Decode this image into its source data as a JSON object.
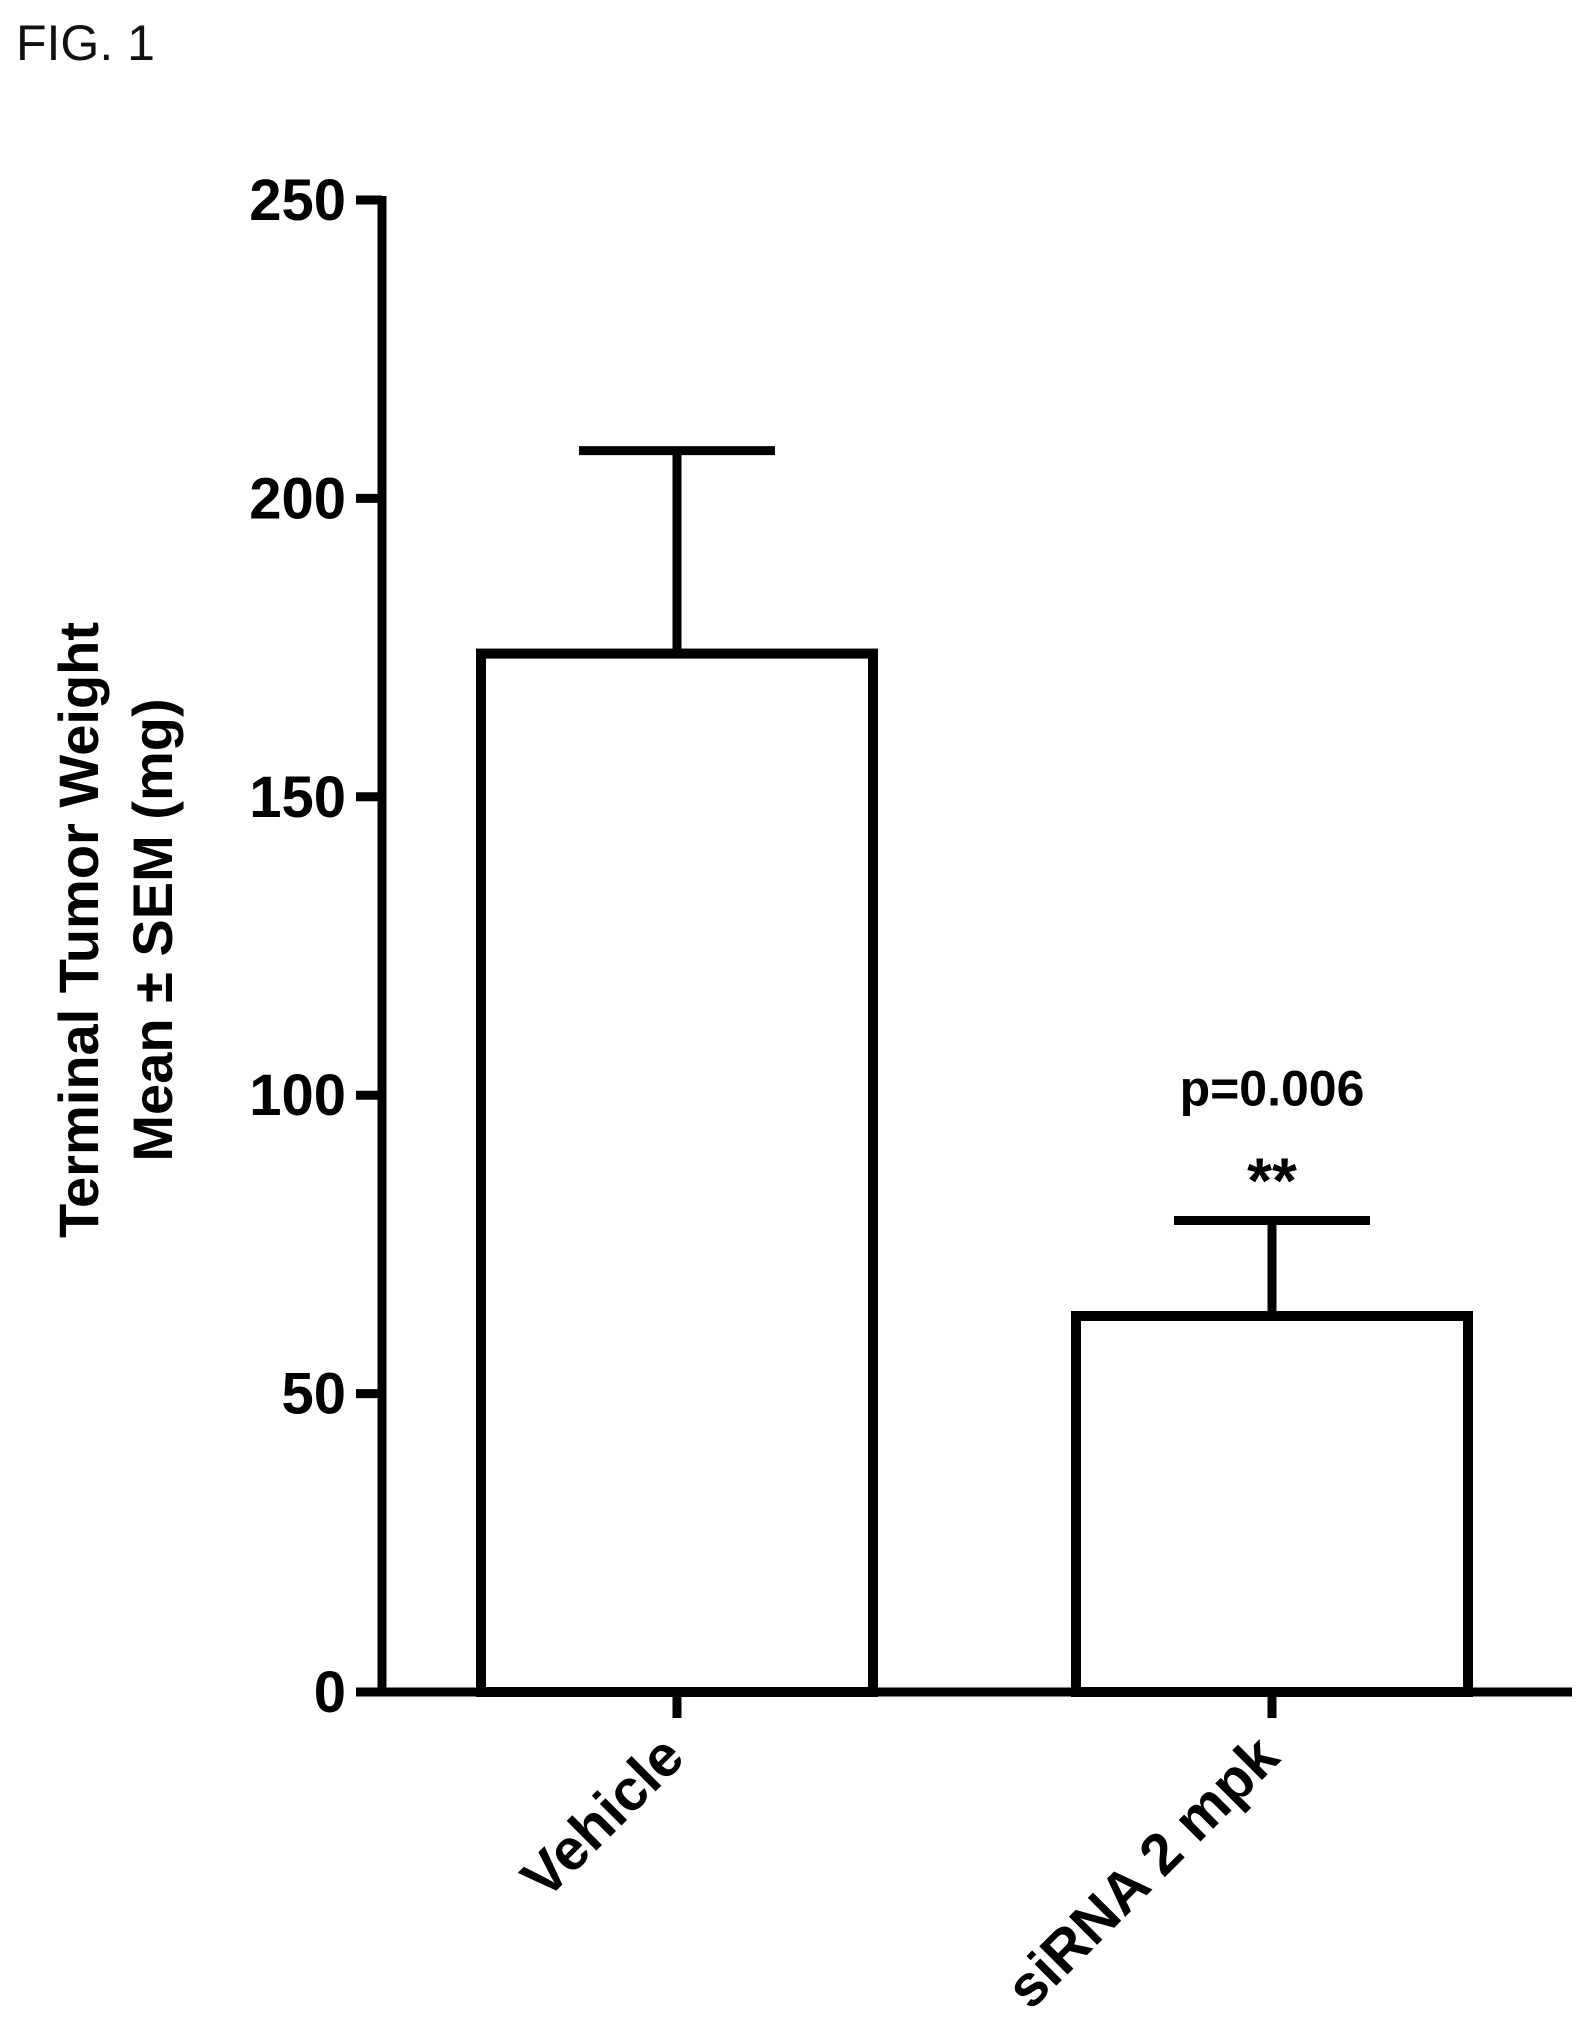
{
  "figure_label": "FIG. 1",
  "chart_data": {
    "type": "bar",
    "categories": [
      "Vehicle",
      "siRNA 2 mpk"
    ],
    "values": [
      174,
      63
    ],
    "errors": [
      34,
      16
    ],
    "ylabel_line1": "Terminal Tumor Weight",
    "ylabel_line2": "Mean ± SEM (mg)",
    "xlabel": "",
    "ylim": [
      0,
      250
    ],
    "yticks": [
      0,
      50,
      100,
      150,
      200,
      250
    ],
    "ytick_labels": [
      "0",
      "50",
      "100",
      "150",
      "200",
      "250"
    ],
    "grid": false,
    "annotations": [
      {
        "category_index": 1,
        "stars": "**",
        "pvalue": "p=0.006"
      }
    ],
    "colors": {
      "bar_fill": "#ffffff",
      "bar_stroke": "#000000"
    }
  }
}
